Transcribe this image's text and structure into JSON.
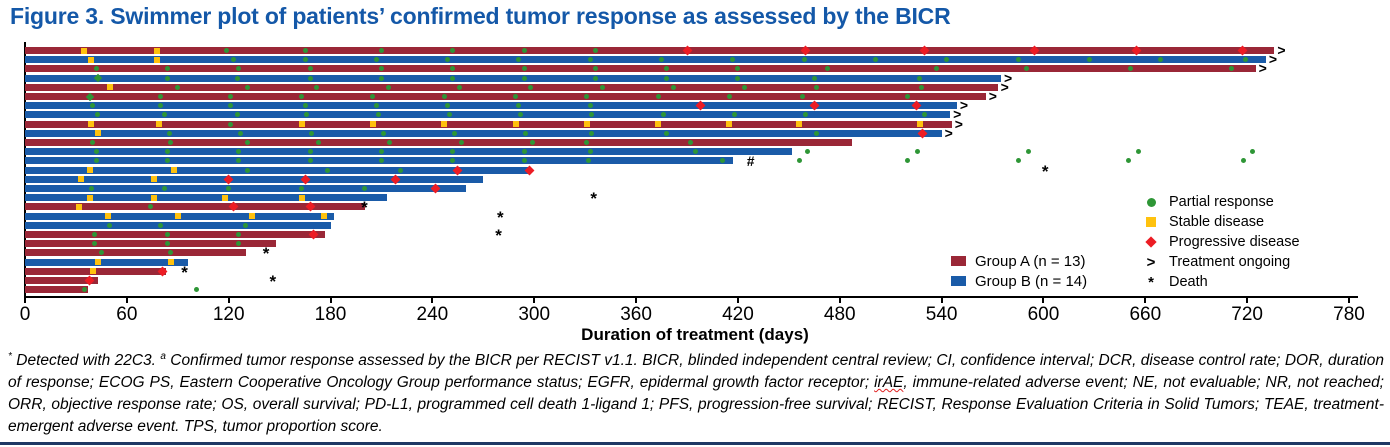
{
  "title": "Figure 3. Swimmer plot of patients’ confirmed tumor response as assessed by the BICR",
  "colors": {
    "group_a": "#9A2737",
    "group_b": "#1A5BA8",
    "partial_response": "#2E9636",
    "stable_disease": "#FFC20E",
    "progressive_disease": "#EC1C24",
    "title": "#1458A8",
    "bottom_rule": "#1F3864"
  },
  "chart_data": {
    "type": "bar",
    "subtype": "swimmer",
    "title": "Figure 3. Swimmer plot of patients’ confirmed tumor response as assessed by the BICR",
    "xlabel": "Duration of treatment (days)",
    "xlim": [
      0,
      780
    ],
    "xticks": [
      0,
      60,
      120,
      180,
      240,
      300,
      360,
      420,
      480,
      540,
      600,
      660,
      720,
      780
    ],
    "grid": false,
    "legend_position": "right",
    "marker_legend": [
      {
        "label": "Partial response",
        "marker": "circle",
        "color": "#2E9636"
      },
      {
        "label": "Stable disease",
        "marker": "square",
        "color": "#FFC20E"
      },
      {
        "label": "Progressive disease",
        "marker": "diamond",
        "color": "#EC1C24"
      },
      {
        "label": "Treatment ongoing",
        "marker": ">",
        "symbol": ">"
      },
      {
        "label": "Death",
        "marker": "*",
        "symbol": "*"
      }
    ],
    "groups": [
      {
        "id": "A",
        "label": "Group A (n = 13)",
        "color": "#9A2737"
      },
      {
        "id": "B",
        "label": "Group B (n = 14)",
        "color": "#1A5BA8"
      }
    ],
    "marker_types": {
      "pr": "partial response (green circle)",
      "prd": "partial response (green diamond)",
      "sd": "stable disease (yellow square)",
      "pd": "progressive disease (red diamond)",
      "death": "death (asterisk)",
      "hash": "footnote symbol (#)"
    },
    "patients": [
      {
        "group": "A",
        "duration": 736,
        "ongoing": true,
        "markers": [
          [
            35,
            "sd"
          ],
          [
            78,
            "sd"
          ],
          [
            119,
            "pr"
          ],
          [
            165,
            "pr"
          ],
          [
            210,
            "pr"
          ],
          [
            252,
            "pr"
          ],
          [
            294,
            "pr"
          ],
          [
            336,
            "pr"
          ],
          [
            390,
            "pd"
          ],
          [
            460,
            "pd"
          ],
          [
            530,
            "pd"
          ],
          [
            595,
            "pd"
          ],
          [
            655,
            "pd"
          ],
          [
            717,
            "pd"
          ]
        ]
      },
      {
        "group": "B",
        "duration": 731,
        "ongoing": true,
        "markers": [
          [
            39,
            "sd"
          ],
          [
            78,
            "sd"
          ],
          [
            123,
            "pr"
          ],
          [
            165,
            "pr"
          ],
          [
            207,
            "pr"
          ],
          [
            249,
            "pr"
          ],
          [
            291,
            "pr"
          ],
          [
            333,
            "pr"
          ],
          [
            375,
            "pr"
          ],
          [
            417,
            "pr"
          ],
          [
            459,
            "pr"
          ],
          [
            501,
            "pr"
          ],
          [
            543,
            "pr"
          ],
          [
            585,
            "pr"
          ],
          [
            627,
            "pr"
          ],
          [
            669,
            "pr"
          ],
          [
            719,
            "pr"
          ]
        ]
      },
      {
        "group": "A",
        "duration": 725,
        "ongoing": true,
        "markers": [
          [
            42,
            "pr"
          ],
          [
            84,
            "pr"
          ],
          [
            126,
            "pr"
          ],
          [
            168,
            "pr"
          ],
          [
            210,
            "pr"
          ],
          [
            252,
            "pr"
          ],
          [
            294,
            "pr"
          ],
          [
            336,
            "pr"
          ],
          [
            378,
            "pr"
          ],
          [
            420,
            "pr"
          ],
          [
            473,
            "pr"
          ],
          [
            537,
            "pr"
          ],
          [
            590,
            "pr"
          ],
          [
            651,
            "pr"
          ],
          [
            711,
            "pr"
          ]
        ]
      },
      {
        "group": "B",
        "duration": 575,
        "ongoing": true,
        "markers": [
          [
            43,
            "prd"
          ],
          [
            84,
            "pr"
          ],
          [
            125,
            "pr"
          ],
          [
            168,
            "pr"
          ],
          [
            210,
            "pr"
          ],
          [
            252,
            "pr"
          ],
          [
            294,
            "pr"
          ],
          [
            336,
            "pr"
          ],
          [
            378,
            "pr"
          ],
          [
            420,
            "pr"
          ],
          [
            465,
            "pr"
          ],
          [
            527,
            "pr"
          ]
        ]
      },
      {
        "group": "A",
        "duration": 573,
        "ongoing": true,
        "markers": [
          [
            50,
            "sd"
          ],
          [
            90,
            "pr"
          ],
          [
            131,
            "pr"
          ],
          [
            172,
            "pr"
          ],
          [
            214,
            "pr"
          ],
          [
            256,
            "pr"
          ],
          [
            298,
            "pr"
          ],
          [
            340,
            "pr"
          ],
          [
            382,
            "pr"
          ],
          [
            424,
            "pr"
          ],
          [
            466,
            "pr"
          ],
          [
            528,
            "pr"
          ]
        ]
      },
      {
        "group": "A",
        "duration": 566,
        "ongoing": true,
        "markers": [
          [
            38,
            "prd"
          ],
          [
            80,
            "pr"
          ],
          [
            121,
            "pr"
          ],
          [
            163,
            "pr"
          ],
          [
            205,
            "pr"
          ],
          [
            247,
            "pr"
          ],
          [
            289,
            "pr"
          ],
          [
            331,
            "pr"
          ],
          [
            373,
            "pr"
          ],
          [
            415,
            "pr"
          ],
          [
            458,
            "pr"
          ],
          [
            520,
            "pr"
          ]
        ]
      },
      {
        "group": "B",
        "duration": 549,
        "ongoing": true,
        "markers": [
          [
            40,
            "pr"
          ],
          [
            80,
            "pr"
          ],
          [
            121,
            "pr"
          ],
          [
            165,
            "pr"
          ],
          [
            207,
            "pr"
          ],
          [
            249,
            "pr"
          ],
          [
            291,
            "pr"
          ],
          [
            333,
            "pr"
          ],
          [
            398,
            "pd"
          ],
          [
            465,
            "pd"
          ],
          [
            525,
            "pd"
          ]
        ]
      },
      {
        "group": "B",
        "duration": 545,
        "ongoing": true,
        "markers": [
          [
            43,
            "pr"
          ],
          [
            82,
            "pr"
          ],
          [
            125,
            "pr"
          ],
          [
            166,
            "pr"
          ],
          [
            208,
            "pr"
          ],
          [
            250,
            "pr"
          ],
          [
            292,
            "pr"
          ],
          [
            334,
            "pr"
          ],
          [
            376,
            "pr"
          ],
          [
            418,
            "pr"
          ],
          [
            460,
            "pr"
          ],
          [
            530,
            "pr"
          ]
        ]
      },
      {
        "group": "A",
        "duration": 546,
        "ongoing": true,
        "markers": [
          [
            39,
            "sd"
          ],
          [
            79,
            "sd"
          ],
          [
            121,
            "pr"
          ],
          [
            163,
            "sd"
          ],
          [
            205,
            "sd"
          ],
          [
            247,
            "sd"
          ],
          [
            289,
            "sd"
          ],
          [
            331,
            "sd"
          ],
          [
            373,
            "sd"
          ],
          [
            415,
            "sd"
          ],
          [
            456,
            "sd"
          ],
          [
            527,
            "sd"
          ]
        ]
      },
      {
        "group": "B",
        "duration": 540,
        "ongoing": true,
        "markers": [
          [
            43,
            "sd"
          ],
          [
            85,
            "pr"
          ],
          [
            127,
            "pr"
          ],
          [
            169,
            "pr"
          ],
          [
            211,
            "pr"
          ],
          [
            253,
            "pr"
          ],
          [
            295,
            "pr"
          ],
          [
            334,
            "pr"
          ],
          [
            378,
            "pr"
          ],
          [
            466,
            "pr"
          ],
          [
            529,
            "pd"
          ]
        ]
      },
      {
        "group": "A",
        "duration": 487,
        "ongoing": false,
        "markers": [
          [
            40,
            "pr"
          ],
          [
            86,
            "pr"
          ],
          [
            131,
            "pr"
          ],
          [
            173,
            "pr"
          ],
          [
            215,
            "pr"
          ],
          [
            257,
            "pr"
          ],
          [
            299,
            "pr"
          ],
          [
            331,
            "pr"
          ],
          [
            392,
            "pr"
          ]
        ]
      },
      {
        "group": "B",
        "duration": 452,
        "ongoing": false,
        "markers": [
          [
            42,
            "pr"
          ],
          [
            84,
            "pr"
          ],
          [
            126,
            "pr"
          ],
          [
            168,
            "pr"
          ],
          [
            210,
            "pr"
          ],
          [
            252,
            "pr"
          ],
          [
            294,
            "pr"
          ],
          [
            333,
            "pr"
          ],
          [
            395,
            "pr"
          ],
          [
            461,
            "pr"
          ],
          [
            526,
            "pr"
          ],
          [
            591,
            "pr"
          ],
          [
            656,
            "pr"
          ],
          [
            723,
            "pr"
          ]
        ]
      },
      {
        "group": "B",
        "duration": 417,
        "ongoing": false,
        "markers": [
          [
            42,
            "pr"
          ],
          [
            84,
            "pr"
          ],
          [
            126,
            "pr"
          ],
          [
            168,
            "pr"
          ],
          [
            210,
            "pr"
          ],
          [
            252,
            "pr"
          ],
          [
            294,
            "pr"
          ],
          [
            332,
            "pr"
          ],
          [
            411,
            "pr"
          ],
          [
            424,
            "hash"
          ],
          [
            456,
            "pr"
          ],
          [
            520,
            "pr"
          ],
          [
            585,
            "pr"
          ],
          [
            650,
            "pr"
          ],
          [
            718,
            "pr"
          ]
        ]
      },
      {
        "group": "B",
        "duration": 298,
        "ongoing": false,
        "markers": [
          [
            38,
            "sd"
          ],
          [
            88,
            "sd"
          ],
          [
            131,
            "pr"
          ],
          [
            178,
            "pr"
          ],
          [
            221,
            "pr"
          ],
          [
            255,
            "pd"
          ],
          [
            297,
            "pd"
          ],
          [
            602,
            "death"
          ]
        ]
      },
      {
        "group": "B",
        "duration": 270,
        "ongoing": false,
        "markers": [
          [
            33,
            "sd"
          ],
          [
            76,
            "sd"
          ],
          [
            120,
            "pd"
          ],
          [
            165,
            "pd"
          ],
          [
            218,
            "pd"
          ]
        ]
      },
      {
        "group": "B",
        "duration": 260,
        "ongoing": false,
        "markers": [
          [
            39,
            "pr"
          ],
          [
            82,
            "pr"
          ],
          [
            120,
            "pr"
          ],
          [
            163,
            "pr"
          ],
          [
            200,
            "pr"
          ],
          [
            242,
            "pd"
          ]
        ]
      },
      {
        "group": "B",
        "duration": 213,
        "ongoing": false,
        "markers": [
          [
            38,
            "sd"
          ],
          [
            76,
            "sd"
          ],
          [
            118,
            "sd"
          ],
          [
            163,
            "sd"
          ],
          [
            336,
            "death"
          ]
        ]
      },
      {
        "group": "A",
        "duration": 200,
        "ongoing": false,
        "markers": [
          [
            32,
            "sd"
          ],
          [
            74,
            "pr"
          ],
          [
            123,
            "pd"
          ],
          [
            168,
            "pd"
          ],
          [
            201,
            "death"
          ]
        ]
      },
      {
        "group": "B",
        "duration": 182,
        "ongoing": false,
        "markers": [
          [
            49,
            "sd"
          ],
          [
            90,
            "sd"
          ],
          [
            134,
            "sd"
          ],
          [
            176,
            "sd"
          ],
          [
            281,
            "death"
          ]
        ]
      },
      {
        "group": "B",
        "duration": 180,
        "ongoing": false,
        "markers": [
          [
            50,
            "pr"
          ],
          [
            80,
            "pr"
          ],
          [
            130,
            "pr"
          ]
        ]
      },
      {
        "group": "A",
        "duration": 177,
        "ongoing": false,
        "markers": [
          [
            41,
            "pr"
          ],
          [
            84,
            "pr"
          ],
          [
            126,
            "pr"
          ],
          [
            170,
            "pd"
          ],
          [
            280,
            "death"
          ]
        ]
      },
      {
        "group": "A",
        "duration": 148,
        "ongoing": false,
        "markers": [
          [
            41,
            "pr"
          ],
          [
            84,
            "pr"
          ],
          [
            126,
            "pr"
          ]
        ]
      },
      {
        "group": "A",
        "duration": 130,
        "ongoing": false,
        "markers": [
          [
            45,
            "pr"
          ],
          [
            86,
            "pr"
          ],
          [
            143,
            "death"
          ]
        ]
      },
      {
        "group": "B",
        "duration": 96,
        "ongoing": false,
        "markers": [
          [
            43,
            "sd"
          ],
          [
            86,
            "sd"
          ]
        ]
      },
      {
        "group": "A",
        "duration": 83,
        "ongoing": false,
        "markers": [
          [
            40,
            "sd"
          ],
          [
            81,
            "pd"
          ],
          [
            95,
            "death"
          ]
        ]
      },
      {
        "group": "A",
        "duration": 43,
        "ongoing": false,
        "markers": [
          [
            38,
            "pd"
          ],
          [
            147,
            "death"
          ]
        ]
      },
      {
        "group": "A",
        "duration": 37,
        "ongoing": false,
        "markers": [
          [
            35,
            "pr"
          ],
          [
            101,
            "pr"
          ]
        ]
      }
    ]
  },
  "footnote": {
    "sup_star": "*",
    "part1": " Detected with 22C3. ",
    "sup_a": "a",
    "part2": " Confirmed tumor response assessed by the BICR per RECIST v1.1. BICR, blinded independent central review; CI, confidence interval; DCR, disease control rate; DOR, duration of response; ECOG PS, Eastern Cooperative Oncology Group performance status; EGFR, epidermal growth factor receptor; ",
    "misspelled_word": "irAE",
    "part3": ", immune-related adverse event; NE, not evaluable; NR, not reached; ORR, objective response rate; OS, overall survival; PD-L1, programmed cell death 1-ligand 1; PFS, progression-free survival; RECIST, Response Evaluation Criteria in Solid Tumors; TEAE, treatment-emergent adverse event. TPS, tumor proportion score."
  }
}
